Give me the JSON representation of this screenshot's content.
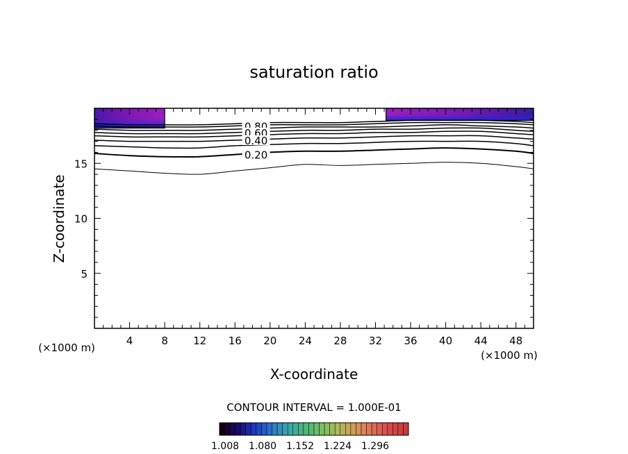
{
  "chart_data": {
    "type": "contour",
    "title": "saturation ratio",
    "xlabel": "X-coordinate",
    "ylabel": "Z-coordinate",
    "x_unit": "(×1000 m)",
    "z_unit": "(×1000 m)",
    "xlim": [
      0,
      50
    ],
    "ylim": [
      0,
      20
    ],
    "x_ticks": [
      4,
      8,
      12,
      16,
      20,
      24,
      28,
      32,
      36,
      40,
      44,
      48
    ],
    "y_ticks": [
      5,
      10,
      15
    ],
    "contour_interval_text": "CONTOUR INTERVAL = 1.000E-01",
    "contour_labels": [
      "0.80",
      "0.60",
      "0.40",
      "0.20"
    ],
    "contours": [
      {
        "level": 0.1,
        "x": [
          0,
          4,
          8,
          12,
          16,
          20,
          24,
          28,
          32,
          36,
          40,
          44,
          48,
          50
        ],
        "y": [
          14.5,
          14.3,
          14.1,
          14.0,
          14.3,
          14.6,
          14.9,
          14.8,
          14.9,
          15.0,
          15.1,
          15.0,
          14.7,
          14.5
        ]
      },
      {
        "level": 0.2,
        "x": [
          0,
          4,
          8,
          12,
          16,
          20,
          24,
          28,
          32,
          36,
          40,
          44,
          48,
          50
        ],
        "y": [
          15.9,
          15.7,
          15.6,
          15.6,
          15.8,
          16.0,
          16.1,
          16.1,
          16.2,
          16.3,
          16.4,
          16.3,
          16.1,
          15.9
        ]
      },
      {
        "level": 0.3,
        "x": [
          0,
          4,
          8,
          12,
          16,
          20,
          24,
          28,
          32,
          36,
          40,
          44,
          48,
          50
        ],
        "y": [
          16.6,
          16.5,
          16.4,
          16.4,
          16.6,
          16.7,
          16.8,
          16.8,
          16.9,
          17.0,
          17.0,
          17.0,
          16.8,
          16.6
        ]
      },
      {
        "level": 0.4,
        "x": [
          0,
          4,
          8,
          12,
          16,
          20,
          24,
          28,
          32,
          36,
          40,
          44,
          48,
          50
        ],
        "y": [
          17.1,
          17.0,
          17.0,
          17.0,
          17.1,
          17.2,
          17.3,
          17.3,
          17.4,
          17.5,
          17.5,
          17.5,
          17.3,
          17.2
        ]
      },
      {
        "level": 0.5,
        "x": [
          0,
          4,
          8,
          12,
          16,
          20,
          24,
          28,
          32,
          36,
          40,
          44,
          48,
          50
        ],
        "y": [
          17.5,
          17.4,
          17.4,
          17.4,
          17.5,
          17.6,
          17.7,
          17.7,
          17.8,
          17.8,
          17.9,
          17.9,
          17.7,
          17.6
        ]
      },
      {
        "level": 0.6,
        "x": [
          0,
          4,
          8,
          12,
          16,
          20,
          24,
          28,
          32,
          36,
          40,
          44,
          48,
          50
        ],
        "y": [
          17.8,
          17.7,
          17.7,
          17.7,
          17.8,
          17.9,
          18.0,
          18.0,
          18.1,
          18.1,
          18.2,
          18.2,
          18.0,
          17.9
        ]
      },
      {
        "level": 0.7,
        "x": [
          0,
          4,
          8,
          12,
          16,
          20,
          24,
          28,
          32,
          36,
          40,
          44,
          48,
          50
        ],
        "y": [
          18.1,
          18.0,
          18.0,
          18.0,
          18.1,
          18.2,
          18.3,
          18.3,
          18.3,
          18.4,
          18.5,
          18.4,
          18.3,
          18.2
        ]
      },
      {
        "level": 0.8,
        "x": [
          0,
          4,
          8,
          12,
          16,
          20,
          24,
          28,
          32,
          36,
          40,
          44,
          48,
          50
        ],
        "y": [
          18.4,
          18.3,
          18.3,
          18.3,
          18.4,
          18.5,
          18.5,
          18.5,
          18.6,
          18.7,
          18.7,
          18.7,
          18.6,
          18.5
        ]
      },
      {
        "level": 0.9,
        "x": [
          0,
          4,
          8,
          12,
          16,
          20,
          24,
          28,
          32,
          36,
          40,
          44,
          48,
          50
        ],
        "y": [
          18.6,
          18.5,
          18.5,
          18.5,
          18.6,
          18.7,
          18.7,
          18.7,
          18.8,
          18.9,
          18.9,
          18.9,
          18.8,
          18.7
        ]
      }
    ],
    "supersaturated_regions": [
      {
        "x": [
          0,
          8
        ],
        "z_bottom": 18.2,
        "z_top": 20
      },
      {
        "x": [
          33.2,
          50
        ],
        "z_bottom": 18.9,
        "z_top": 20
      }
    ],
    "colorbar": {
      "ticks": [
        "1.008",
        "1.080",
        "1.152",
        "1.224",
        "1.296"
      ],
      "colors": [
        "#120012",
        "#1a0a6e",
        "#1f3cc8",
        "#2a7acc",
        "#39a8a8",
        "#4ab878",
        "#7ac060",
        "#b0b858",
        "#d89858",
        "#e07058",
        "#d84848",
        "#c83c3c"
      ]
    }
  }
}
